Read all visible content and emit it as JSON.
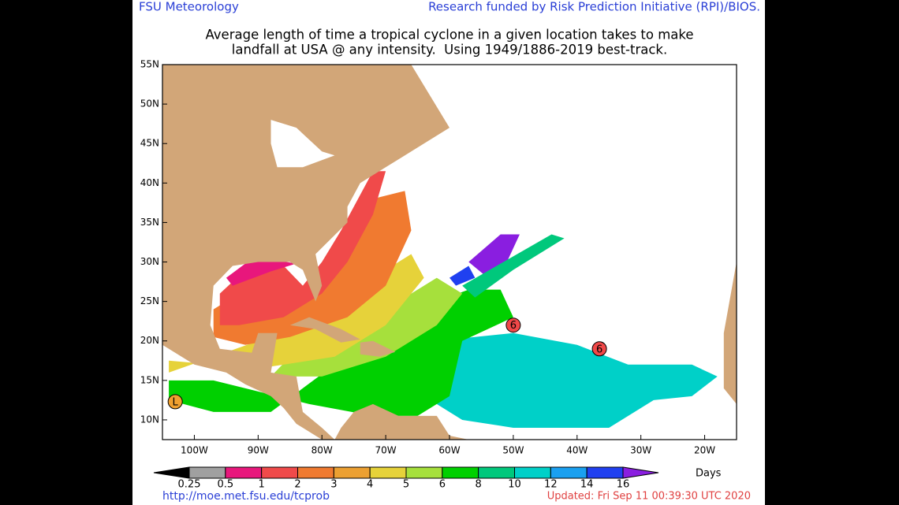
{
  "header": {
    "left": "FSU Meteorology",
    "right": "Research funded by Risk Prediction Initiative (RPI)/BIOS."
  },
  "title": [
    "Average length of time a tropical cyclone in a given location takes to make",
    "landfall at USA @ any intensity.  Using 1949/1886-2019 best-track."
  ],
  "map": {
    "xlim": [
      -105,
      -15
    ],
    "ylim": [
      7.5,
      55
    ],
    "xticks": [
      {
        "value": -100,
        "label": "100W"
      },
      {
        "value": -90,
        "label": "90W"
      },
      {
        "value": -80,
        "label": "80W"
      },
      {
        "value": -70,
        "label": "70W"
      },
      {
        "value": -60,
        "label": "60W"
      },
      {
        "value": -50,
        "label": "50W"
      },
      {
        "value": -40,
        "label": "40W"
      },
      {
        "value": -30,
        "label": "30W"
      },
      {
        "value": -20,
        "label": "20W"
      }
    ],
    "yticks": [
      {
        "value": 10,
        "label": "10N"
      },
      {
        "value": 15,
        "label": "15N"
      },
      {
        "value": 20,
        "label": "20N"
      },
      {
        "value": 25,
        "label": "25N"
      },
      {
        "value": 30,
        "label": "30N"
      },
      {
        "value": 35,
        "label": "35N"
      },
      {
        "value": 40,
        "label": "40N"
      },
      {
        "value": 45,
        "label": "45N"
      },
      {
        "value": 50,
        "label": "50N"
      },
      {
        "value": 55,
        "label": "55N"
      }
    ],
    "markers": [
      "6",
      "6",
      "L"
    ]
  },
  "colorbar": {
    "levels": [
      0.25,
      0.5,
      1,
      2,
      3,
      4,
      5,
      6,
      8,
      10,
      12,
      14,
      16
    ],
    "colors": [
      "#000000",
      "#a0a0a0",
      "#e8177c",
      "#f04a4a",
      "#f07a30",
      "#eca032",
      "#e6d23a",
      "#a6e03c",
      "#00d000",
      "#00c87c",
      "#00d0c8",
      "#1aa0f0",
      "#2040f0",
      "#8a1ee0"
    ],
    "unit": "Days"
  },
  "footer": {
    "url": "http://moe.met.fsu.edu/tcprob",
    "updated": "Updated: Fri Sep 11 00:39:30 UTC 2020"
  }
}
